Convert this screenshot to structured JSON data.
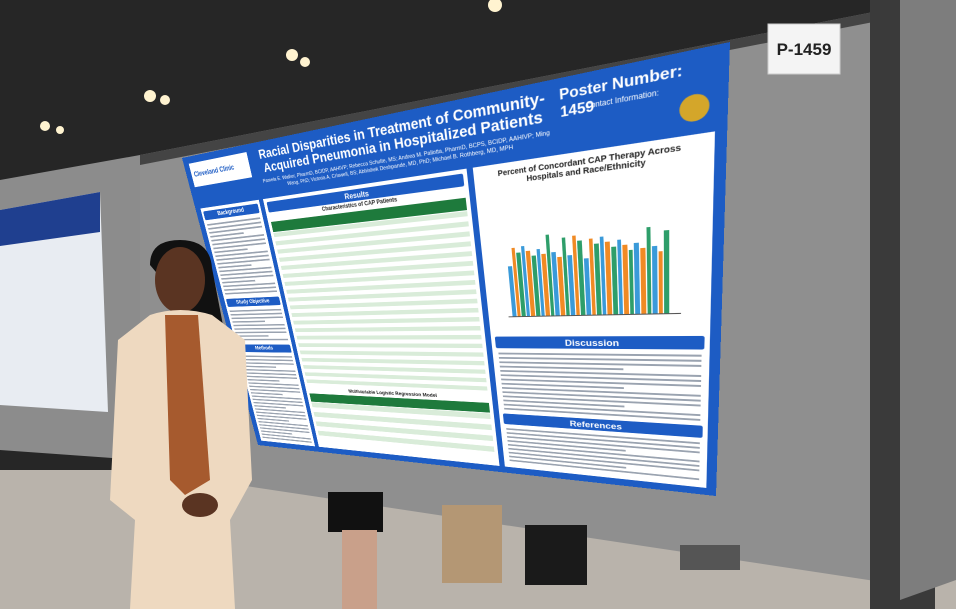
{
  "sign": "P-1459",
  "poster": {
    "logo": "Cleveland Clinic",
    "title": "Racial Disparities in Treatment of Community-Acquired Pneumonia in Hospitalized Patients",
    "authors": "Pamela E. Walker, PharmD, BCIDP, AAHIVP; Rebecca Schulte, MS; Andrea M. Pallotta, PharmD, BCPS, BCIDP, AAHIVP; Ming Wang, PhD; Victoria A. Criswell, BS; Abhishek Deshpande, MD, PhD; Michael B. Rothberg, MD, MPH",
    "poster_number": "Poster Number: 1459",
    "contact": "Contact Information:",
    "sections": {
      "background": "Background",
      "objective": "Study Objective",
      "methods": "Methods",
      "results": "Results",
      "table_title": "Characteristics of CAP Patients",
      "model_title": "Multivariable Logistic Regression Model",
      "chart_title": "Percent of Concordant CAP Therapy Across Hospitals and Race/Ethnicity",
      "discussion": "Discussion",
      "references": "References"
    }
  }
}
